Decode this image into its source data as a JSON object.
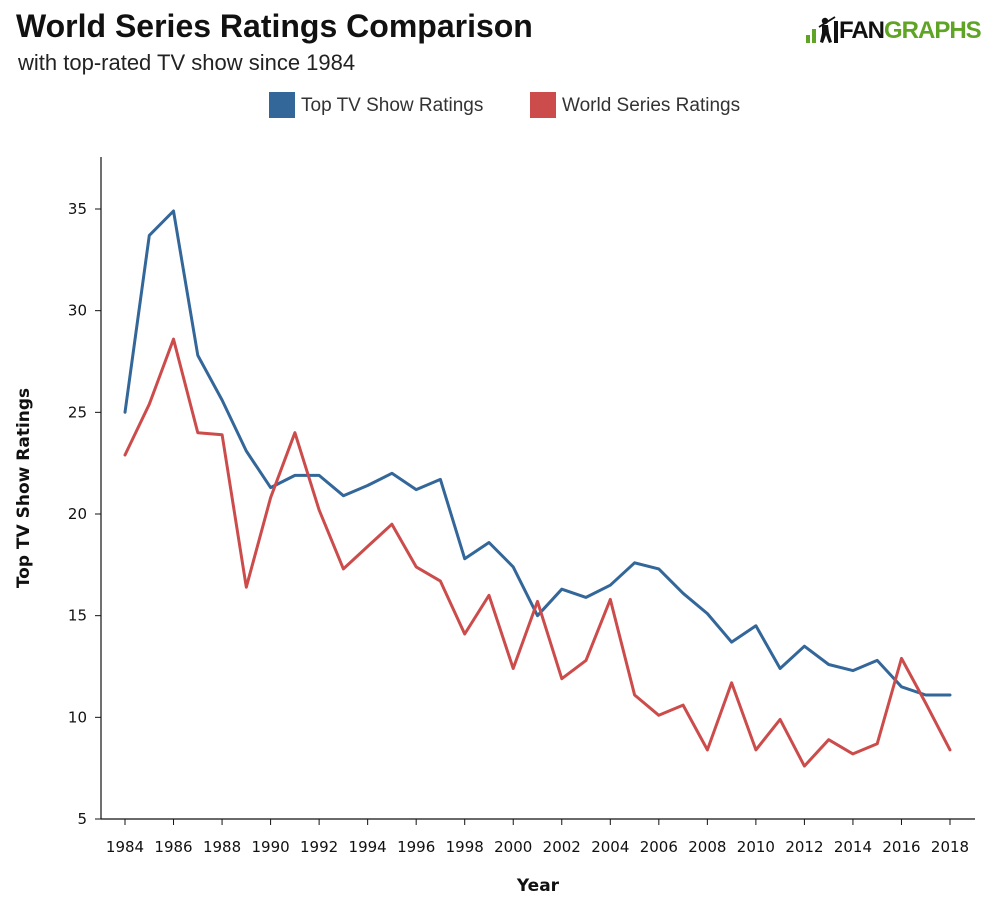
{
  "header": {
    "title": "World Series Ratings Comparison",
    "subtitle": "with top-rated TV show since 1984"
  },
  "logo": {
    "text_fan": "FAN",
    "text_graphs": "GRAPHS",
    "icon": "batter-icon",
    "color_fan": "#111111",
    "color_graphs": "#5fa424"
  },
  "chart_data": {
    "type": "line",
    "title": "World Series Ratings Comparison",
    "subtitle": "with top-rated TV show since 1984",
    "xlabel": "Year",
    "ylabel": "Top TV Show Ratings",
    "xlim": [
      1984,
      2018
    ],
    "ylim": [
      5,
      37.5
    ],
    "x_ticks": [
      1984,
      1986,
      1988,
      1990,
      1992,
      1994,
      1996,
      1998,
      2000,
      2002,
      2004,
      2006,
      2008,
      2010,
      2012,
      2014,
      2016,
      2018
    ],
    "y_ticks": [
      5,
      10,
      15,
      20,
      25,
      30,
      35
    ],
    "grid": false,
    "legend_position": "top-center",
    "x": [
      1984,
      1985,
      1986,
      1987,
      1988,
      1989,
      1990,
      1991,
      1992,
      1993,
      1994,
      1995,
      1996,
      1997,
      1998,
      1999,
      2000,
      2001,
      2002,
      2003,
      2004,
      2005,
      2006,
      2007,
      2008,
      2009,
      2010,
      2011,
      2012,
      2013,
      2014,
      2015,
      2016,
      2017,
      2018
    ],
    "series": [
      {
        "name": "Top TV Show Ratings",
        "color": "#336699",
        "values": [
          25.0,
          33.7,
          34.9,
          27.8,
          25.6,
          23.1,
          21.3,
          21.9,
          21.9,
          20.9,
          21.4,
          22.0,
          21.2,
          21.7,
          17.8,
          18.6,
          17.4,
          15.0,
          16.3,
          15.9,
          16.5,
          17.6,
          17.3,
          16.1,
          15.1,
          13.7,
          14.5,
          12.4,
          13.5,
          12.6,
          12.3,
          12.8,
          11.5,
          11.1,
          11.1
        ]
      },
      {
        "name": "World Series Ratings",
        "color": "#cc4c4c",
        "values": [
          22.9,
          25.4,
          28.6,
          24.0,
          23.9,
          16.4,
          20.8,
          24.0,
          20.2,
          17.3,
          18.4,
          19.5,
          17.4,
          16.7,
          14.1,
          16.0,
          12.4,
          15.7,
          11.9,
          12.8,
          15.8,
          11.1,
          10.1,
          10.6,
          8.4,
          11.7,
          8.4,
          9.9,
          7.6,
          8.9,
          8.2,
          8.7,
          12.9,
          10.7,
          8.4
        ]
      }
    ]
  }
}
